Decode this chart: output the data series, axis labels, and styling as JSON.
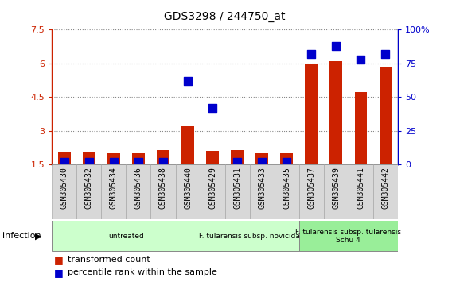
{
  "title": "GDS3298 / 244750_at",
  "samples": [
    "GSM305430",
    "GSM305432",
    "GSM305434",
    "GSM305436",
    "GSM305438",
    "GSM305440",
    "GSM305429",
    "GSM305431",
    "GSM305433",
    "GSM305435",
    "GSM305437",
    "GSM305439",
    "GSM305441",
    "GSM305442"
  ],
  "transformed_count": [
    2.05,
    2.05,
    2.0,
    2.0,
    2.15,
    3.2,
    2.1,
    2.15,
    2.0,
    2.0,
    6.0,
    6.1,
    4.7,
    5.85
  ],
  "percentile_rank": [
    2,
    2,
    2,
    2,
    2,
    62,
    42,
    2,
    2,
    2,
    82,
    88,
    78,
    82
  ],
  "bar_color": "#cc2200",
  "dot_color": "#0000cc",
  "ylim_left": [
    1.5,
    7.5
  ],
  "ylim_right": [
    0,
    100
  ],
  "yticks_left": [
    1.5,
    3.0,
    4.5,
    6.0,
    7.5
  ],
  "yticks_right": [
    0,
    25,
    50,
    75,
    100
  ],
  "ytick_labels_left": [
    "1.5",
    "3",
    "4.5",
    "6",
    "7.5"
  ],
  "ytick_labels_right": [
    "0",
    "25",
    "50",
    "75",
    "100%"
  ],
  "group_labels": [
    "untreated",
    "F. tularensis subsp. novicida",
    "F. tularensis subsp. tularensis\nSchu 4"
  ],
  "group_ranges": [
    [
      0,
      6
    ],
    [
      6,
      10
    ],
    [
      10,
      14
    ]
  ],
  "group_colors_light": [
    "#ccffcc",
    "#ccffcc",
    "#99ee99"
  ],
  "group_colors_dark": [
    "#aaddaa",
    "#aaddaa",
    "#77cc77"
  ],
  "infection_label": "infection",
  "legend_items": [
    "transformed count",
    "percentile rank within the sample"
  ],
  "legend_colors": [
    "#cc2200",
    "#0000cc"
  ],
  "sample_bg": "#d8d8d8",
  "plot_bg": "#ffffff",
  "grid_color": "#888888",
  "bar_width": 0.5,
  "dot_size": 55,
  "bar_bottom": 1.5
}
